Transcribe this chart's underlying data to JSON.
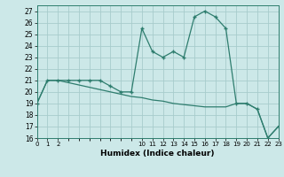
{
  "x_main": [
    0,
    1,
    2,
    3,
    4,
    5,
    6,
    7,
    8,
    9,
    10,
    11,
    12,
    13,
    14,
    15,
    16,
    17,
    18,
    19,
    20,
    21,
    22,
    23
  ],
  "y_main": [
    19,
    21,
    21,
    21,
    21,
    21,
    21,
    20.5,
    20,
    20,
    25.5,
    23.5,
    23,
    23.5,
    23,
    26.5,
    27,
    26.5,
    25.5,
    19,
    19,
    18.5,
    16,
    17
  ],
  "x_second": [
    0,
    1,
    2,
    3,
    4,
    5,
    6,
    7,
    8,
    9,
    10,
    11,
    12,
    13,
    14,
    15,
    16,
    17,
    18,
    19,
    20,
    21,
    22,
    23
  ],
  "y_second": [
    19,
    21,
    21,
    20.8,
    20.6,
    20.4,
    20.2,
    20.0,
    19.8,
    19.6,
    19.5,
    19.3,
    19.2,
    19.0,
    18.9,
    18.8,
    18.7,
    18.7,
    18.7,
    19,
    19,
    18.5,
    16,
    17
  ],
  "xlim": [
    0,
    23
  ],
  "ylim": [
    16,
    27.5
  ],
  "yticks": [
    16,
    17,
    18,
    19,
    20,
    21,
    22,
    23,
    24,
    25,
    26,
    27
  ],
  "xtick_positions": [
    0,
    1,
    2,
    10,
    11,
    12,
    13,
    14,
    15,
    16,
    17,
    18,
    19,
    20,
    21,
    22,
    23
  ],
  "xtick_labels": [
    "0",
    "1",
    "2",
    "10",
    "11",
    "12",
    "13",
    "14",
    "15",
    "16",
    "17",
    "18",
    "19",
    "20",
    "21",
    "22",
    "23"
  ],
  "xlabel": "Humidex (Indice chaleur)",
  "line_color": "#2e7d6e",
  "bg_color": "#cce8e8",
  "grid_color": "#a8cccc",
  "marker_color": "#2e7d6e"
}
